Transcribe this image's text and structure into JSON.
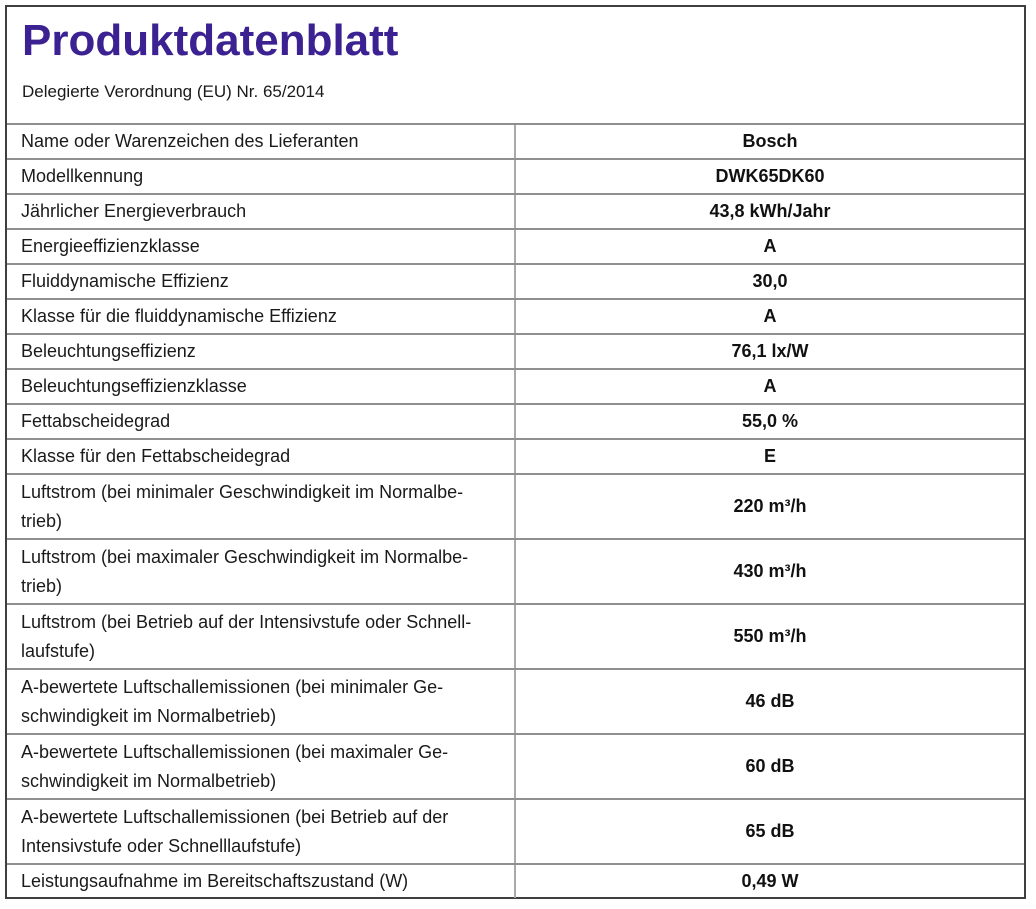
{
  "page": {
    "title": "Produktdatenblatt",
    "subtitle": "Delegierte Verordnung (EU) Nr. 65/2014",
    "title_color": "#3b2191",
    "supplier_brand": "Bosch",
    "model": "DWK65DK60"
  },
  "table": {
    "rows": [
      {
        "label": "Name oder Warenzeichen des Lieferanten",
        "value": "Bosch"
      },
      {
        "label": "Modellkennung",
        "value": "DWK65DK60"
      },
      {
        "label": "Jährlicher Energieverbrauch",
        "value": "43,8 kWh/Jahr"
      },
      {
        "label": "Energieeffizienzklasse",
        "value": "A"
      },
      {
        "label": "Fluiddynamische Effizienz",
        "value": "30,0"
      },
      {
        "label": "Klasse für die fluiddynamische Effizienz",
        "value": "A"
      },
      {
        "label": "Beleuchtungseffizienz",
        "value": "76,1 lx/W"
      },
      {
        "label": "Beleuchtungseffizienzklasse",
        "value": "A"
      },
      {
        "label": "Fettabscheidegrad",
        "value": "55,0 %"
      },
      {
        "label": "Klasse für den Fettabscheidegrad",
        "value": "E"
      },
      {
        "label": "Luftstrom (bei minimaler Geschwindigkeit im Normalbe-\ntrieb)",
        "value": "220 m³/h"
      },
      {
        "label": "Luftstrom (bei maximaler Geschwindigkeit im Normalbe-\ntrieb)",
        "value": "430 m³/h"
      },
      {
        "label": "Luftstrom (bei Betrieb auf der Intensivstufe oder Schnell-\nlaufstufe)",
        "value": "550 m³/h"
      },
      {
        "label": "A-bewertete Luftschallemissionen (bei minimaler Ge-\nschwindigkeit im Normalbetrieb)",
        "value": "46 dB"
      },
      {
        "label": "A-bewertete Luftschallemissionen (bei maximaler Ge-\nschwindigkeit im Normalbetrieb)",
        "value": "60 dB"
      },
      {
        "label": "A-bewertete Luftschallemissionen (bei Betrieb auf der\nIntensivstufe oder Schnelllaufstufe)",
        "value": "65 dB"
      },
      {
        "label": "Leistungsaufnahme im Bereitschaftszustand (W)",
        "value": "0,49 W"
      }
    ]
  }
}
